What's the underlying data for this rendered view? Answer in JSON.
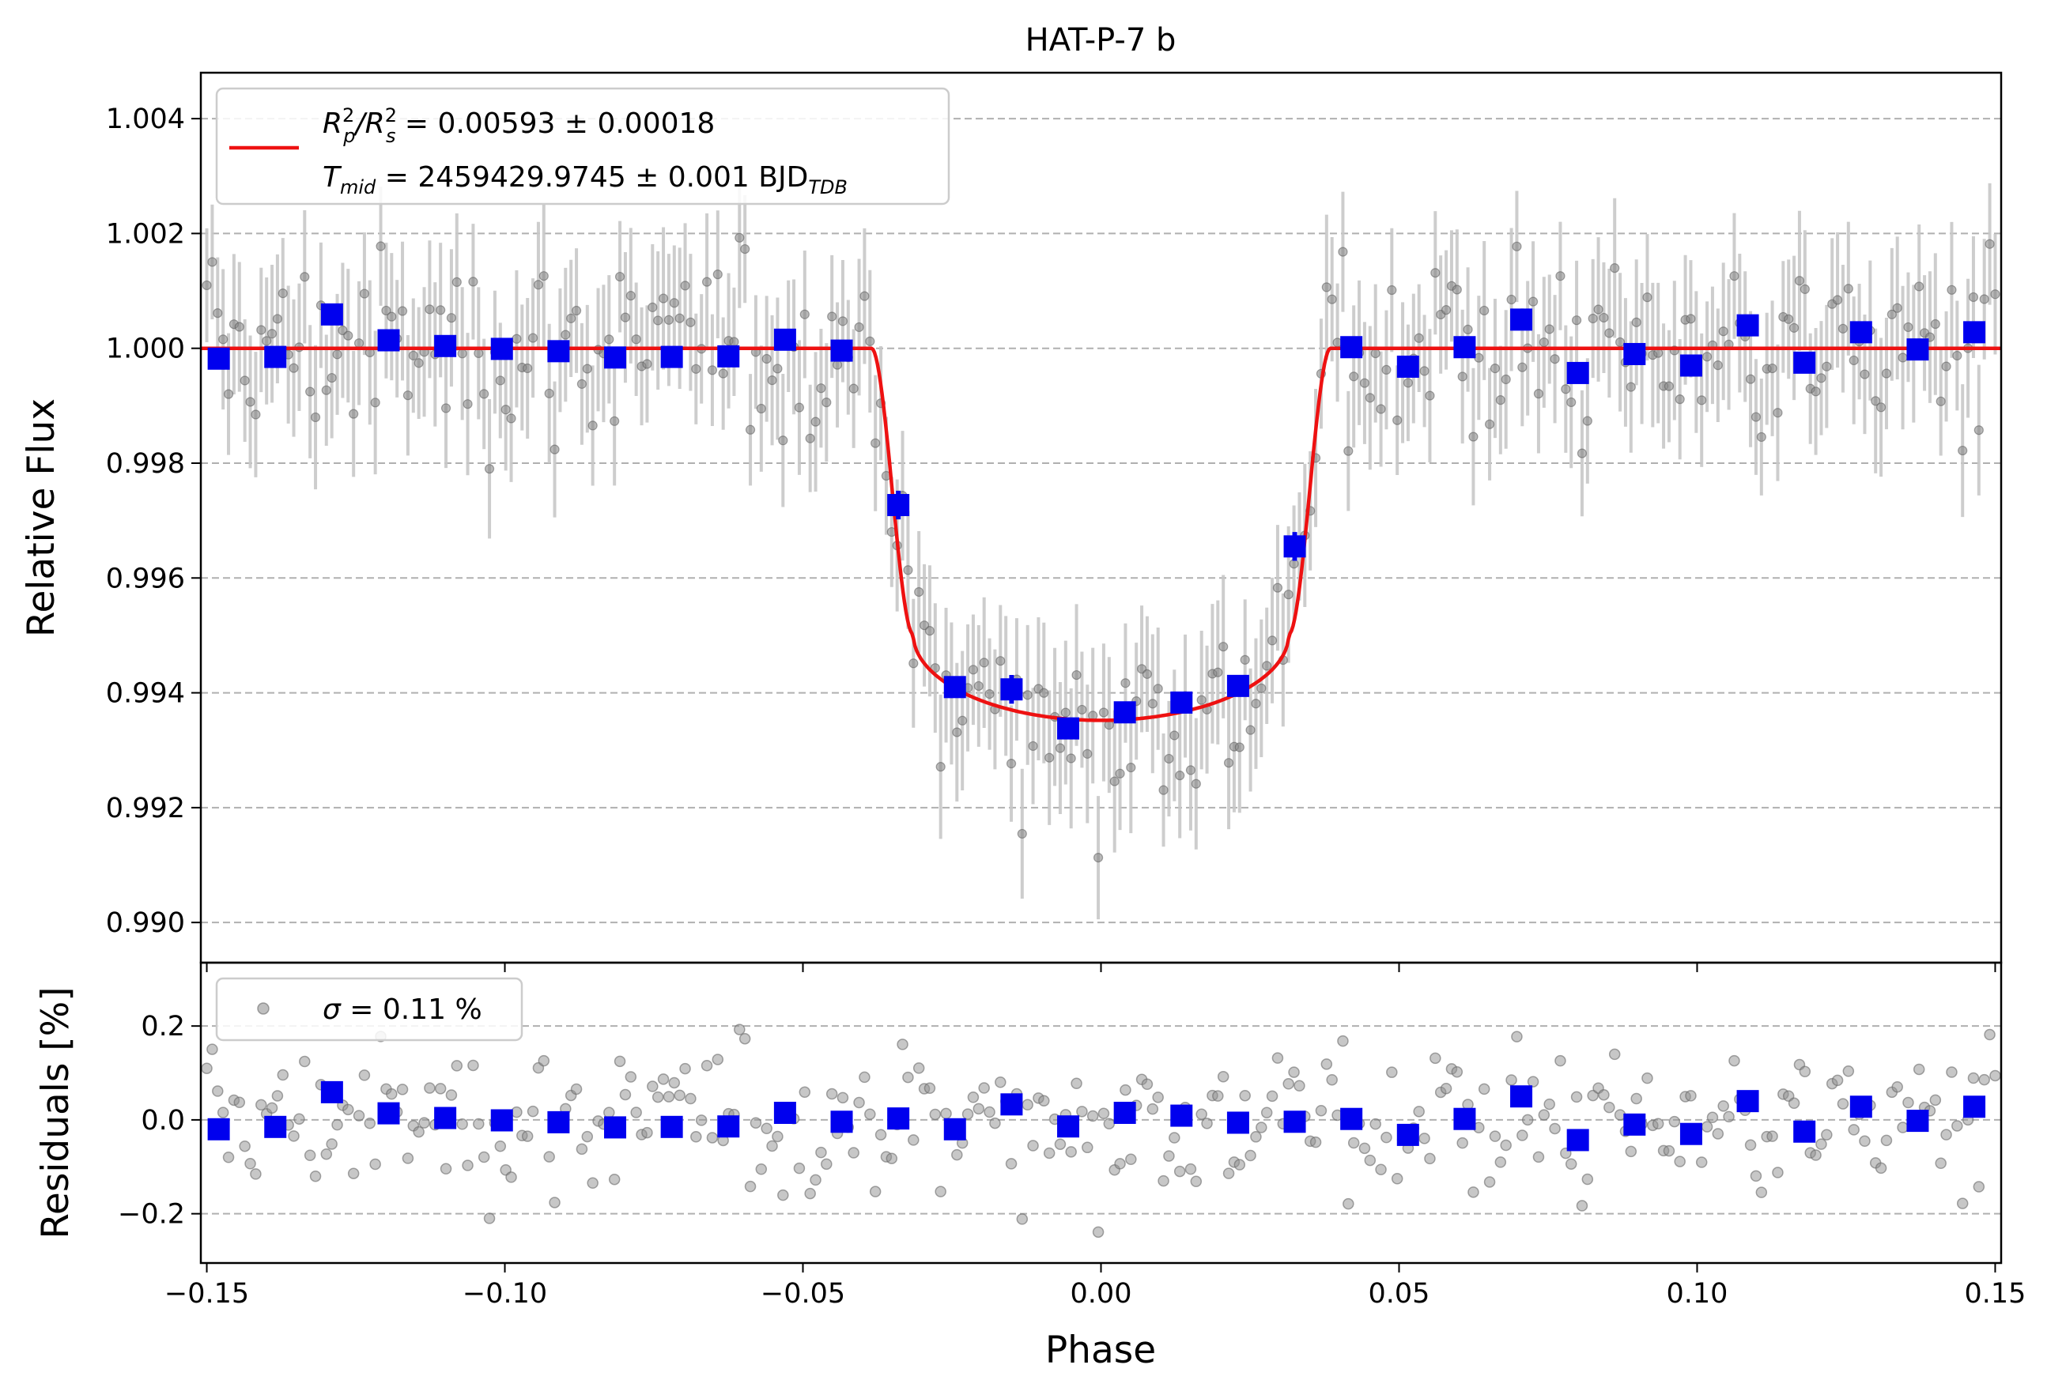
{
  "chart_data": [
    {
      "type": "scatter",
      "title": "HAT-P-7 b",
      "xlabel": "",
      "ylabel": "Relative Flux",
      "xlim": [
        -0.151,
        0.151
      ],
      "ylim": [
        0.9893,
        1.0048
      ],
      "xticks": [
        -0.15,
        -0.1,
        -0.05,
        0.0,
        0.05,
        0.1,
        0.15
      ],
      "yticks": [
        0.99,
        0.992,
        0.994,
        0.996,
        0.998,
        1.0,
        1.002,
        1.004
      ],
      "ytick_labels": [
        "0.990",
        "0.992",
        "0.994",
        "0.996",
        "0.998",
        "1.000",
        "1.002",
        "1.004"
      ],
      "grid": "horizontal dashed",
      "legend_placement": "top-left",
      "legend": {
        "line1_a": "R",
        "line1_sub_a": "p",
        "line1_sup_a": "2",
        "line1_b": "/R",
        "line1_sub_b": "s",
        "line1_sup_b": "2",
        "line1_c": " = 0.00593 ± 0.00018",
        "line2_a": "T",
        "line2_sub_a": "mid",
        "line2_b": " = 2459429.9745 ± 0.001 BJD",
        "line2_sub_b": "TDB"
      },
      "model": {
        "name": "transit model",
        "color": "#ee1111",
        "baseline": 1.0,
        "depth_center": 0.99352,
        "contact_1": -0.0385,
        "contact_2": -0.0315,
        "contact_3": 0.0315,
        "contact_4": 0.0385,
        "ingress_flux": 0.99502
      },
      "raw_series": {
        "name": "unbinned data",
        "color": "#808080",
        "error_color": "#c8c8c8",
        "x_start": -0.15,
        "x_end": 0.15,
        "n_points": 330,
        "scatter_sigma": 0.0011,
        "typical_error": 0.0011
      },
      "binned_series": {
        "name": "binned data",
        "color": "#0000ee",
        "x": [
          -0.148,
          -0.1385,
          -0.129,
          -0.1195,
          -0.11,
          -0.1005,
          -0.091,
          -0.0815,
          -0.072,
          -0.0625,
          -0.053,
          -0.0435,
          -0.034,
          -0.0245,
          -0.015,
          -0.0055,
          0.004,
          0.0135,
          0.023,
          0.0325,
          0.042,
          0.0515,
          0.061,
          0.0705,
          0.08,
          0.0895,
          0.099,
          0.1085,
          0.118,
          0.1275,
          0.137,
          0.1465
        ],
        "y": [
          0.99982,
          0.99985,
          1.00059,
          1.00014,
          1.00004,
          0.99999,
          0.99995,
          0.99984,
          0.99985,
          0.99986,
          1.00015,
          0.99996,
          0.99727,
          0.9941,
          0.99406,
          0.99338,
          0.99366,
          0.99383,
          0.99412,
          0.99655,
          1.00002,
          0.99968,
          1.00002,
          1.0005,
          0.99957,
          0.9999,
          0.9997,
          1.0004,
          0.99975,
          1.00028,
          0.99998,
          1.00028
        ],
        "yerr": [
          0.00018,
          0.00018,
          0.00018,
          0.00018,
          0.00018,
          0.00018,
          0.00018,
          0.00018,
          0.00018,
          0.00018,
          0.00018,
          0.00018,
          0.00025,
          0.00018,
          0.00025,
          0.00018,
          0.00018,
          0.00018,
          0.00018,
          0.00025,
          0.00018,
          0.00018,
          0.00018,
          0.00018,
          0.00018,
          0.00018,
          0.00018,
          0.00018,
          0.00018,
          0.00018,
          0.00018,
          0.00018
        ]
      }
    },
    {
      "type": "scatter",
      "title": "",
      "xlabel": "Phase",
      "ylabel": "Residuals [%]",
      "xlim": [
        -0.151,
        0.151
      ],
      "ylim": [
        -0.305,
        0.335
      ],
      "xticks": [
        -0.15,
        -0.1,
        -0.05,
        0.0,
        0.05,
        0.1,
        0.15
      ],
      "xtick_labels": [
        "−0.15",
        "−0.10",
        "−0.05",
        "0.00",
        "0.05",
        "0.10",
        "0.15"
      ],
      "yticks": [
        -0.2,
        0.0,
        0.2
      ],
      "ytick_labels": [
        "−0.2",
        "0.0",
        "0.2"
      ],
      "grid": "horizontal dashed",
      "legend_placement": "top-left",
      "legend": {
        "sigma_symbol": "σ",
        "sigma_text": " = 0.11 %"
      },
      "binned_residuals": [
        -0.02,
        -0.015,
        0.059,
        0.014,
        0.004,
        -0.001,
        -0.005,
        -0.016,
        -0.015,
        -0.014,
        0.015,
        -0.004,
        0.003,
        -0.02,
        0.033,
        -0.014,
        0.015,
        0.009,
        -0.006,
        -0.004,
        0.002,
        -0.032,
        0.002,
        0.05,
        -0.043,
        -0.01,
        -0.03,
        0.04,
        -0.025,
        0.028,
        -0.002,
        0.028
      ]
    }
  ]
}
